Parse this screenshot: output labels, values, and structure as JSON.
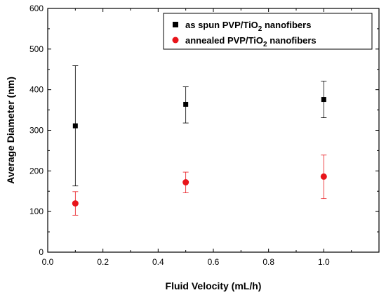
{
  "chart_data": {
    "type": "scatter",
    "title": "",
    "xlabel": "Fluid Velocity (mL/h)",
    "ylabel": "Average Diameter (nm)",
    "xlim": [
      0.0,
      1.2
    ],
    "ylim": [
      0,
      600
    ],
    "xticks": [
      "0.0",
      "0.2",
      "0.4",
      "0.6",
      "0.8",
      "1.0"
    ],
    "yticks": [
      "0",
      "100",
      "200",
      "300",
      "400",
      "500",
      "600"
    ],
    "grid": false,
    "legend_position": "top-right",
    "series": [
      {
        "name": "as spun PVP/TiO2 nanofibers",
        "label_main": "as spun PVP/TiO",
        "label_sub": "2",
        "label_tail": " nanofibers",
        "marker": "square",
        "color": "#000000",
        "x": [
          0.1,
          0.5,
          1.0
        ],
        "y": [
          311,
          364,
          376
        ],
        "err_low": [
          163,
          318,
          331
        ],
        "err_high": [
          459,
          407,
          421
        ]
      },
      {
        "name": "annealed PVP/TiO2 nanofibers",
        "label_main": "annealed PVP/TiO",
        "label_sub": "2",
        "label_tail": " nanofibers",
        "marker": "circle",
        "color": "#e8141a",
        "x": [
          0.1,
          0.5,
          1.0
        ],
        "y": [
          120,
          172,
          186
        ],
        "err_low": [
          91,
          146,
          132
        ],
        "err_high": [
          149,
          197,
          239
        ]
      }
    ]
  }
}
